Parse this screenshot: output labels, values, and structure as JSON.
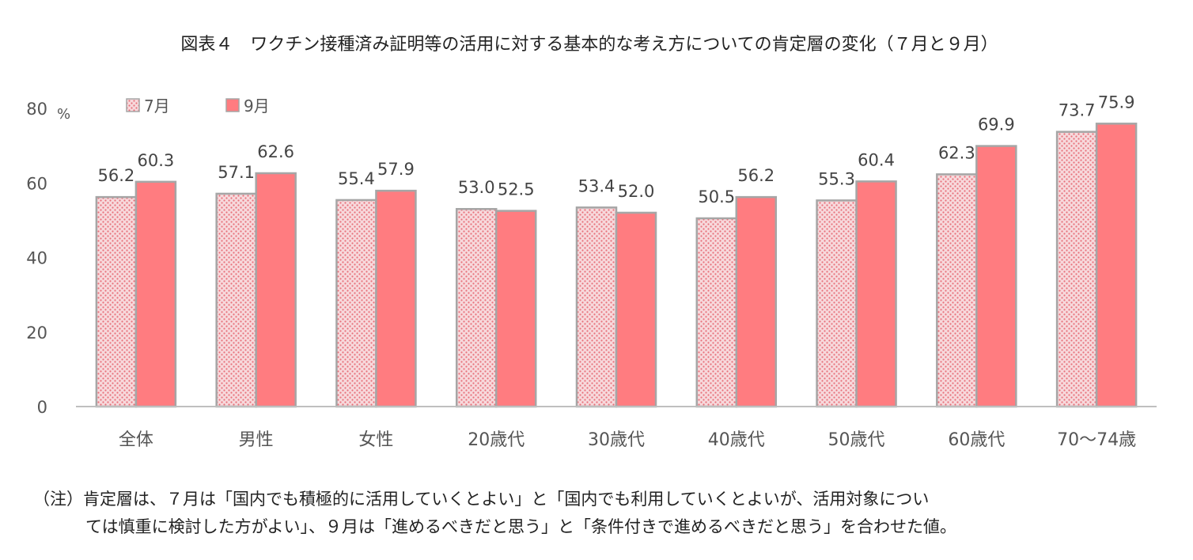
{
  "title": "図表４　ワクチン接種済み証明等の活用に対する基本的な考え方についての肯定層の変化（７月と９月）",
  "note": {
    "line1": "（注）肯定層は、７月は「国内でも積極的に活用していくとよい」と「国内でも利用していくとよいが、活用対象につい",
    "line2": "ては慎重に検討した方がよい」、９月は「進めるべきだと思う」と「条件付きで進めるべきだと思う」を合わせた値。"
  },
  "colors": {
    "july_fill": "#f7d9dc",
    "july_pattern": "#e8707a",
    "sept_fill": "#ff7c80",
    "bar_border": "#a6a6a6",
    "axis": "#bfbfbf"
  },
  "chart_data": {
    "type": "bar",
    "title": "図表４　ワクチン接種済み証明等の活用に対する基本的な考え方についての肯定層の変化（７月と９月）",
    "unit": "%",
    "categories": [
      "全体",
      "男性",
      "女性",
      "20歳代",
      "30歳代",
      "40歳代",
      "50歳代",
      "60歳代",
      "70～74歳"
    ],
    "series": [
      {
        "name": "7月",
        "values": [
          56.2,
          57.1,
          55.4,
          53.0,
          53.4,
          50.5,
          55.3,
          62.3,
          73.7
        ]
      },
      {
        "name": "9月",
        "values": [
          60.3,
          62.6,
          57.9,
          52.5,
          52.0,
          56.2,
          60.4,
          69.9,
          75.9
        ]
      }
    ],
    "ylim": [
      0,
      80
    ],
    "yticks": [
      0,
      20,
      40,
      60,
      80
    ],
    "grid": false,
    "legend_position": "top-left"
  }
}
